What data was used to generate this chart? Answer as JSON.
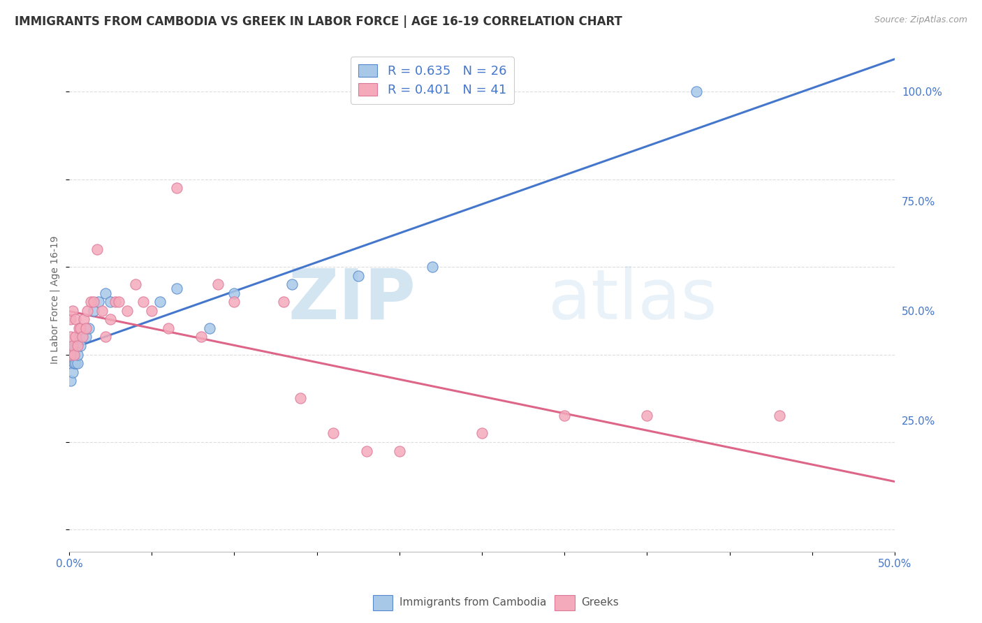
{
  "title": "IMMIGRANTS FROM CAMBODIA VS GREEK IN LABOR FORCE | AGE 16-19 CORRELATION CHART",
  "source": "Source: ZipAtlas.com",
  "ylabel": "In Labor Force | Age 16-19",
  "xlim": [
    0.0,
    0.5
  ],
  "ylim": [
    -0.05,
    1.1
  ],
  "xticks": [
    0.0,
    0.05,
    0.1,
    0.15,
    0.2,
    0.25,
    0.3,
    0.35,
    0.4,
    0.45,
    0.5
  ],
  "xticklabels": [
    "0.0%",
    "",
    "",
    "",
    "",
    "",
    "",
    "",
    "",
    "",
    "50.0%"
  ],
  "ytick_positions": [
    0.0,
    0.25,
    0.5,
    0.75,
    1.0
  ],
  "ytick_labels_right": [
    "",
    "25.0%",
    "50.0%",
    "75.0%",
    "100.0%"
  ],
  "cambodia_color": "#A8C8E8",
  "greek_color": "#F4AABB",
  "cambodia_edge_color": "#5588CC",
  "greek_edge_color": "#DD7799",
  "cambodia_line_color": "#4477CC",
  "greek_line_color": "#DD6688",
  "R_cambodia": 0.635,
  "N_cambodia": 26,
  "R_greek": 0.401,
  "N_greek": 41,
  "watermark_zip": "ZIP",
  "watermark_atlas": "atlas",
  "legend_label_cambodia": "Immigrants from Cambodia",
  "legend_label_greek": "Greeks",
  "cambodia_x": [
    0.001,
    0.001,
    0.002,
    0.002,
    0.003,
    0.003,
    0.004,
    0.004,
    0.005,
    0.005,
    0.006,
    0.007,
    0.01,
    0.012,
    0.015,
    0.018,
    0.022,
    0.025,
    0.055,
    0.065,
    0.085,
    0.1,
    0.135,
    0.175,
    0.22,
    0.38
  ],
  "cambodia_y": [
    0.34,
    0.38,
    0.36,
    0.4,
    0.38,
    0.42,
    0.38,
    0.42,
    0.38,
    0.4,
    0.44,
    0.42,
    0.44,
    0.46,
    0.5,
    0.52,
    0.54,
    0.52,
    0.52,
    0.55,
    0.46,
    0.54,
    0.56,
    0.58,
    0.6,
    1.0
  ],
  "greek_x": [
    0.001,
    0.001,
    0.001,
    0.002,
    0.002,
    0.003,
    0.004,
    0.004,
    0.005,
    0.006,
    0.007,
    0.008,
    0.009,
    0.01,
    0.011,
    0.013,
    0.015,
    0.017,
    0.02,
    0.022,
    0.025,
    0.028,
    0.03,
    0.035,
    0.04,
    0.045,
    0.05,
    0.06,
    0.065,
    0.08,
    0.09,
    0.1,
    0.13,
    0.14,
    0.16,
    0.18,
    0.2,
    0.25,
    0.3,
    0.35,
    0.43
  ],
  "greek_y": [
    0.4,
    0.44,
    0.48,
    0.42,
    0.5,
    0.4,
    0.44,
    0.48,
    0.42,
    0.46,
    0.46,
    0.44,
    0.48,
    0.46,
    0.5,
    0.52,
    0.52,
    0.64,
    0.5,
    0.44,
    0.48,
    0.52,
    0.52,
    0.5,
    0.56,
    0.52,
    0.5,
    0.46,
    0.78,
    0.44,
    0.56,
    0.52,
    0.52,
    0.3,
    0.22,
    0.18,
    0.18,
    0.22,
    0.26,
    0.26,
    0.26
  ],
  "background_color": "#FFFFFF",
  "grid_color": "#DDDDDD",
  "title_fontsize": 12,
  "axis_label_fontsize": 10,
  "tick_fontsize": 11,
  "legend_fontsize": 13
}
